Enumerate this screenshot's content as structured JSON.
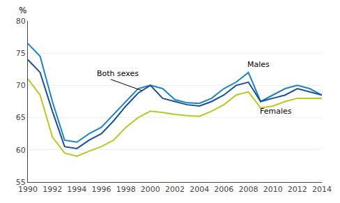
{
  "chart_data": {
    "type": "line",
    "ylabel": "%",
    "x": [
      1990,
      1991,
      1992,
      1993,
      1994,
      1995,
      1996,
      1997,
      1998,
      1999,
      2000,
      2001,
      2002,
      2003,
      2004,
      2005,
      2006,
      2007,
      2008,
      2009,
      2010,
      2011,
      2012,
      2013,
      2014
    ],
    "series": [
      {
        "color": "#1b82c8",
        "values": [
          76.5,
          74.5,
          67.5,
          61.5,
          61.2,
          62.5,
          63.5,
          65.5,
          67.5,
          69.5,
          70.0,
          69.5,
          67.8,
          67.3,
          67.2,
          68.0,
          69.5,
          70.5,
          72.0,
          67.5,
          68.5,
          69.5,
          70.0,
          69.5,
          68.5
        ]
      },
      {
        "color": "#1a4f96",
        "values": [
          74.0,
          72.0,
          66.0,
          60.5,
          60.2,
          61.5,
          62.5,
          64.5,
          66.8,
          68.8,
          70.0,
          68.0,
          67.5,
          67.0,
          66.8,
          67.5,
          68.5,
          70.0,
          70.5,
          67.5,
          68.0,
          68.5,
          69.5,
          69.0,
          68.5
        ]
      },
      {
        "color": "#b8c820",
        "values": [
          71.0,
          68.5,
          62.0,
          59.5,
          59.0,
          59.8,
          60.5,
          61.5,
          63.5,
          65.0,
          66.0,
          65.8,
          65.5,
          65.3,
          65.2,
          66.0,
          67.0,
          68.5,
          69.0,
          66.5,
          66.8,
          67.5,
          68.0,
          68.0,
          68.0
        ]
      }
    ],
    "xlim": [
      1990,
      2014
    ],
    "xticks": [
      1990,
      1992,
      1994,
      1996,
      1998,
      2000,
      2002,
      2004,
      2006,
      2008,
      2010,
      2012,
      2014
    ],
    "ylim": [
      55,
      80
    ],
    "yticks": [
      55,
      60,
      65,
      70,
      75,
      80
    ],
    "grid": "y",
    "annotations": [
      {
        "text": "Both sexes",
        "x": 1995.5,
        "y": 71.8,
        "arrow_to": [
          1999.3,
          69.2
        ]
      },
      {
        "text": "Males",
        "x": 2007.8,
        "y": 73.2
      },
      {
        "text": "Females",
        "x": 2008.8,
        "y": 66.0
      }
    ]
  }
}
